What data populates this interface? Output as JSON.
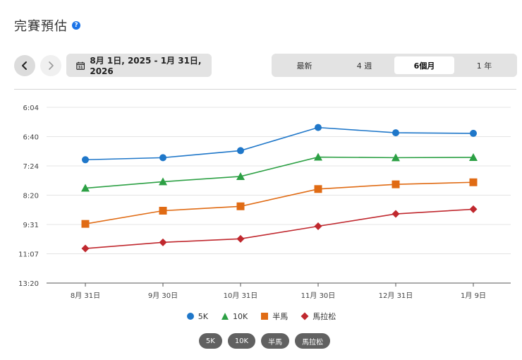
{
  "page": {
    "title": "完賽預估",
    "help_icon": "?"
  },
  "toolbar": {
    "prev_icon": "chevron-left-icon",
    "next_icon": "chevron-right-icon",
    "calendar_icon": "calendar-icon",
    "date_range": "8月 1日, 2025 - 1月 31日, 2026",
    "calendar_day": "31",
    "periods": [
      {
        "label": "最新",
        "active": false
      },
      {
        "label": "4 週",
        "active": false
      },
      {
        "label": "6個月",
        "active": true
      },
      {
        "label": "1 年",
        "active": false
      }
    ]
  },
  "chart_data": {
    "type": "line",
    "title": "",
    "xlabel": "",
    "ylabel": "",
    "categories": [
      "8月 31日",
      "9月 30日",
      "10月 31日",
      "11月 30日",
      "12月 31日",
      "1月 9日"
    ],
    "y_ticks": [
      "6:04",
      "6:40",
      "7:24",
      "8:20",
      "9:31",
      "11:07",
      "13:20"
    ],
    "y_axis_order": "top-to-bottom: faster to slower",
    "ylim": [
      0,
      6
    ],
    "grid": true,
    "legend_position": "bottom",
    "series": [
      {
        "name": "5K",
        "color": "#1f77c9",
        "marker": "circle",
        "values": [
          1.79,
          1.72,
          1.48,
          0.69,
          0.87,
          0.89
        ]
      },
      {
        "name": "10K",
        "color": "#2ca044",
        "marker": "triangle",
        "values": [
          2.76,
          2.54,
          2.36,
          1.7,
          1.72,
          1.71
        ]
      },
      {
        "name": "半馬",
        "color": "#e06b14",
        "marker": "square",
        "values": [
          3.98,
          3.53,
          3.38,
          2.79,
          2.63,
          2.56
        ]
      },
      {
        "name": "馬拉松",
        "color": "#c0282e",
        "marker": "diamond",
        "values": [
          4.82,
          4.61,
          4.49,
          4.06,
          3.64,
          3.48
        ]
      }
    ]
  },
  "chips": [
    "5K",
    "10K",
    "半馬",
    "馬拉松"
  ]
}
